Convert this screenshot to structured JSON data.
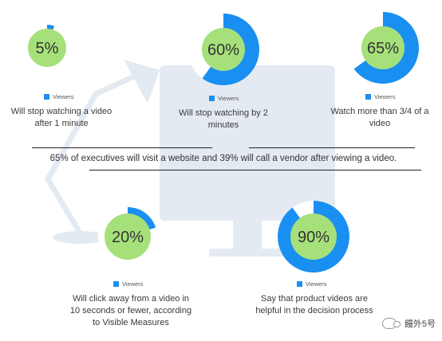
{
  "colors": {
    "accent": "#1a8ff2",
    "inner": "#a6e07a",
    "track": "#ffffff",
    "background_art": "#e4eaf1"
  },
  "chart_data": [
    {
      "type": "pie",
      "variant": "radial-progress",
      "value": 5,
      "label": "5%",
      "legend": "Viewers",
      "caption": "Will stop watching a video after 1 minute"
    },
    {
      "type": "pie",
      "variant": "radial-progress",
      "value": 60,
      "label": "60%",
      "legend": "Viewers",
      "caption": "Will stop watching by 2 minutes"
    },
    {
      "type": "pie",
      "variant": "radial-progress",
      "value": 65,
      "label": "65%",
      "legend": "Viewers",
      "caption": "Watch more than 3/4 of a video"
    },
    {
      "type": "pie",
      "variant": "radial-progress",
      "value": 20,
      "label": "20%",
      "legend": "Viewers",
      "caption": "Will click away from a video in 10 seconds or fewer, according to Visible Measures"
    },
    {
      "type": "pie",
      "variant": "radial-progress",
      "value": 90,
      "label": "90%",
      "legend": "Viewers",
      "caption": "Say that product videos are helpful in the decision process"
    }
  ],
  "banner": "65% of executives will visit a website and 39% will call a vendor after viewing a video.",
  "watermark": "饅外5号"
}
